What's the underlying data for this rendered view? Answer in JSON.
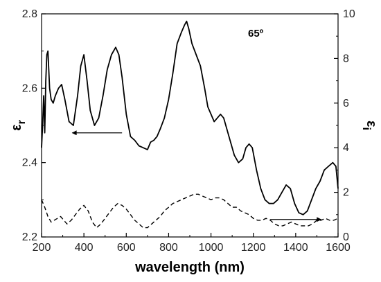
{
  "chart_data": {
    "type": "line",
    "xlabel": "wavelength (nm)",
    "ylabel_left_main": "ε",
    "ylabel_left_sub": "r",
    "ylabel_right_main": "ε",
    "ylabel_right_sub": "i",
    "annotation": "65º",
    "xlim": [
      200,
      1600
    ],
    "ylim_left": [
      2.2,
      2.8
    ],
    "ylim_right": [
      0,
      10
    ],
    "x_ticks": [
      200,
      400,
      600,
      800,
      1000,
      1200,
      1400,
      1600
    ],
    "x_tick_labels": [
      "200",
      "400",
      "600",
      "800",
      "1000",
      "1200",
      "1400",
      "1600"
    ],
    "y_left_ticks": [
      2.2,
      2.4,
      2.6,
      2.8
    ],
    "y_left_tick_labels": [
      "2.2",
      "2.4",
      "2.6",
      "2.8"
    ],
    "y_right_ticks": [
      0,
      2,
      4,
      6,
      8,
      10
    ],
    "y_right_tick_labels": [
      "0",
      "2",
      "4",
      "6",
      "8",
      "10"
    ],
    "grid": false,
    "series": [
      {
        "axis": "left",
        "style": "solid",
        "x": [
          200,
          205,
          210,
          215,
          220,
          225,
          230,
          238,
          245,
          255,
          265,
          280,
          295,
          310,
          330,
          350,
          370,
          385,
          400,
          415,
          430,
          450,
          470,
          490,
          510,
          530,
          550,
          565,
          580,
          600,
          620,
          640,
          660,
          680,
          700,
          715,
          730,
          745,
          760,
          780,
          800,
          820,
          840,
          860,
          875,
          885,
          895,
          910,
          930,
          950,
          970,
          985,
          1000,
          1015,
          1030,
          1045,
          1060,
          1075,
          1090,
          1110,
          1130,
          1150,
          1165,
          1180,
          1195,
          1215,
          1235,
          1255,
          1275,
          1295,
          1315,
          1335,
          1355,
          1375,
          1395,
          1415,
          1435,
          1455,
          1475,
          1495,
          1515,
          1535,
          1555,
          1575,
          1590,
          1600
        ],
        "y": [
          2.44,
          2.5,
          2.58,
          2.48,
          2.62,
          2.69,
          2.7,
          2.6,
          2.57,
          2.56,
          2.58,
          2.6,
          2.61,
          2.57,
          2.51,
          2.5,
          2.58,
          2.66,
          2.69,
          2.62,
          2.54,
          2.5,
          2.52,
          2.58,
          2.65,
          2.69,
          2.71,
          2.69,
          2.63,
          2.53,
          2.47,
          2.46,
          2.445,
          2.44,
          2.435,
          2.455,
          2.46,
          2.47,
          2.49,
          2.52,
          2.57,
          2.64,
          2.72,
          2.75,
          2.77,
          2.78,
          2.76,
          2.72,
          2.69,
          2.66,
          2.6,
          2.55,
          2.53,
          2.51,
          2.52,
          2.53,
          2.52,
          2.49,
          2.46,
          2.42,
          2.4,
          2.41,
          2.44,
          2.45,
          2.44,
          2.38,
          2.33,
          2.3,
          2.29,
          2.29,
          2.3,
          2.32,
          2.34,
          2.33,
          2.29,
          2.265,
          2.26,
          2.27,
          2.3,
          2.33,
          2.35,
          2.38,
          2.39,
          2.4,
          2.39,
          2.33
        ]
      },
      {
        "axis": "left",
        "style": "dashed",
        "x": [
          200,
          215,
          230,
          245,
          260,
          275,
          290,
          305,
          320,
          340,
          360,
          380,
          400,
          420,
          440,
          460,
          480,
          500,
          520,
          540,
          560,
          580,
          600,
          620,
          640,
          660,
          680,
          700,
          720,
          740,
          760,
          780,
          800,
          820,
          840,
          860,
          880,
          900,
          920,
          940,
          960,
          980,
          1000,
          1020,
          1040,
          1060,
          1080,
          1100,
          1120,
          1140,
          1160,
          1180,
          1200,
          1220,
          1240,
          1260,
          1280,
          1300,
          1320,
          1340,
          1360,
          1380,
          1400,
          1420,
          1440,
          1460,
          1480,
          1500,
          1520,
          1540,
          1560,
          1580,
          1600
        ],
        "y": [
          2.3,
          2.28,
          2.255,
          2.24,
          2.245,
          2.25,
          2.255,
          2.245,
          2.235,
          2.245,
          2.26,
          2.275,
          2.285,
          2.27,
          2.24,
          2.225,
          2.235,
          2.25,
          2.265,
          2.28,
          2.29,
          2.285,
          2.275,
          2.26,
          2.245,
          2.235,
          2.225,
          2.225,
          2.235,
          2.245,
          2.255,
          2.27,
          2.28,
          2.29,
          2.295,
          2.3,
          2.305,
          2.31,
          2.315,
          2.315,
          2.31,
          2.305,
          2.3,
          2.305,
          2.305,
          2.3,
          2.29,
          2.28,
          2.28,
          2.27,
          2.265,
          2.26,
          2.25,
          2.245,
          2.245,
          2.25,
          2.245,
          2.235,
          2.23,
          2.23,
          2.235,
          2.24,
          2.235,
          2.23,
          2.23,
          2.23,
          2.235,
          2.245,
          2.245,
          2.25,
          2.245,
          2.245,
          2.25
        ]
      }
    ],
    "arrows": [
      {
        "direction": "left",
        "axis": "left",
        "x_from": 580,
        "x_to": 345,
        "y": 2.48
      },
      {
        "direction": "right",
        "axis": "left",
        "x_from": 1280,
        "x_to": 1520,
        "y": 2.247
      }
    ]
  }
}
